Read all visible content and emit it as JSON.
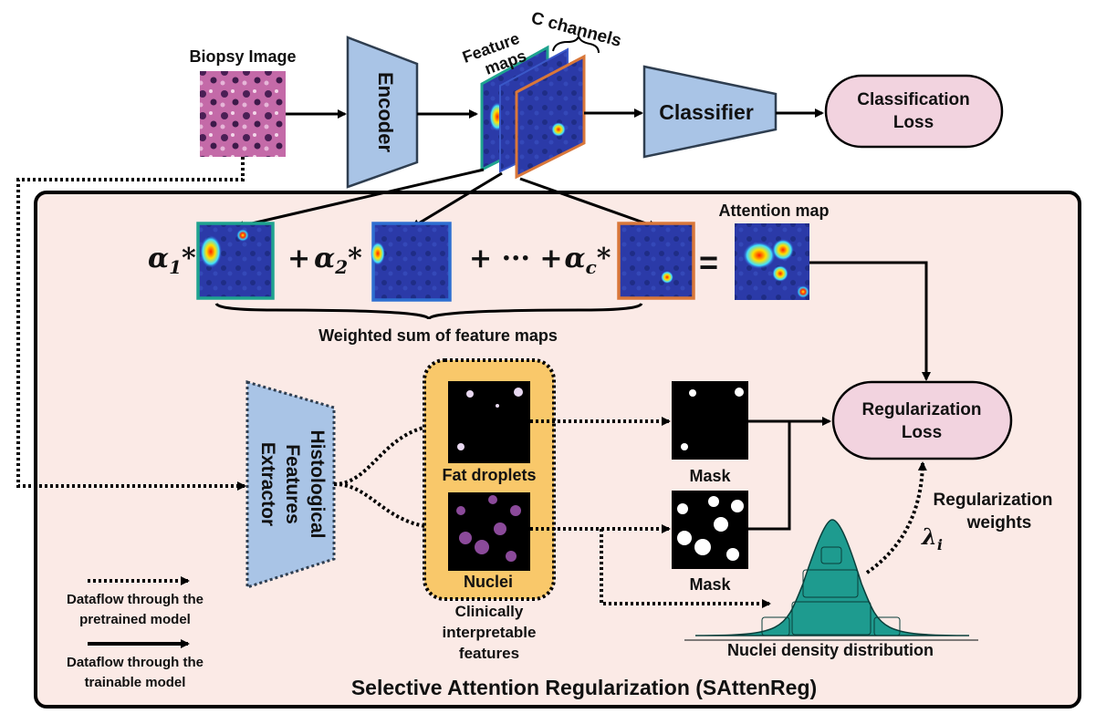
{
  "input": {
    "label": "Biopsy Image"
  },
  "encoder": {
    "label": "Encoder"
  },
  "feature_maps": {
    "label_line1": "Feature",
    "label_line2": "maps",
    "channels_label": "C channels"
  },
  "classifier": {
    "label": "Classifier"
  },
  "classification_loss": {
    "label_line1": "Classification",
    "label_line2": "Loss"
  },
  "sattenreg": {
    "title": "Selective Attention Regularization (SAttenReg)",
    "weighted_sum_label": "Weighted sum of feature maps",
    "attention_map_label": "Attention map",
    "equation": {
      "alpha": "α",
      "sub1": "1",
      "sub2": "2",
      "subc": "c",
      "star": "*",
      "plus": "+",
      "ellipsis_plus": "+ ··· +",
      "equals": "="
    }
  },
  "extractor": {
    "line1": "Histological",
    "line2": "Features",
    "line3": "Extractor"
  },
  "features": {
    "fat_label": "Fat droplets",
    "nuclei_label": "Nuclei",
    "caption_line1": "Clinically",
    "caption_line2": "interpretable",
    "caption_line3": "features"
  },
  "masks": {
    "mask1_label": "Mask",
    "mask2_label": "Mask"
  },
  "regularization_loss": {
    "label_line1": "Regularization",
    "label_line2": "Loss"
  },
  "reg_weights": {
    "line1": "Regularization",
    "line2": "weights",
    "lambda": "λ",
    "lambda_sub": "i"
  },
  "distribution": {
    "label": "Nuclei density distribution"
  },
  "legend": {
    "dotted_line1": "Dataflow through the",
    "dotted_line2": "pretrained model",
    "solid_line1": "Dataflow through the",
    "solid_line2": "trainable model"
  },
  "colors": {
    "block_fill": "#a9c4e6",
    "block_stroke": "#2f3e50",
    "loss_fill": "#f2d3df",
    "panel_fill": "#fbeae6",
    "feature_box": "#f9c86a",
    "teal_frame": "#1fa38f",
    "blue_frame": "#2e6fd1",
    "orange_frame": "#d9773a",
    "distribution": "#1e9b8f"
  }
}
